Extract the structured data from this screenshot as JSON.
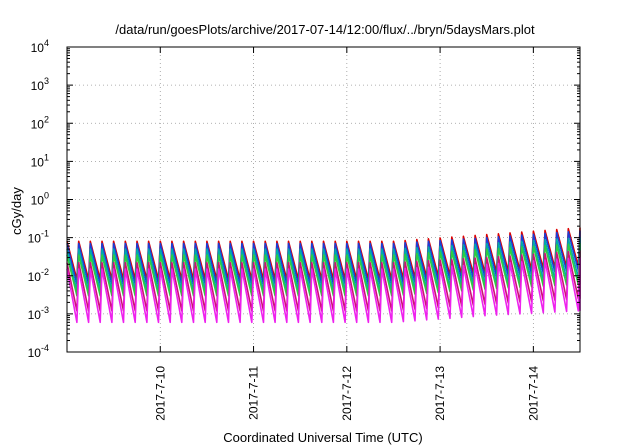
{
  "chart_data": {
    "type": "line",
    "title": "/data/run/goesPlots/archive/2017-07-14/12:00/flux/../bryn/5daysMars.plot",
    "xlabel": "Coordinated Universal Time (UTC)",
    "ylabel": "cGy/day",
    "yscale": "log",
    "ylim": [
      0.0001,
      10000
    ],
    "xlim": [
      "2017-07-09T00:00",
      "2017-07-14T12:00"
    ],
    "grid": true,
    "y_ticks": [
      {
        "base": "10",
        "exp": "-4"
      },
      {
        "base": "10",
        "exp": "-3"
      },
      {
        "base": "10",
        "exp": "-2"
      },
      {
        "base": "10",
        "exp": "-1"
      },
      {
        "base": "10",
        "exp": "0"
      },
      {
        "base": "10",
        "exp": "1"
      },
      {
        "base": "10",
        "exp": "2"
      },
      {
        "base": "10",
        "exp": "3"
      },
      {
        "base": "10",
        "exp": "4"
      }
    ],
    "x_ticks": [
      {
        "label": "2017-7-10",
        "x": "2017-07-10T00:00"
      },
      {
        "label": "2017-7-11",
        "x": "2017-07-11T00:00"
      },
      {
        "label": "2017-7-12",
        "x": "2017-07-12T00:00"
      },
      {
        "label": "2017-7-13",
        "x": "2017-07-13T00:00"
      },
      {
        "label": "2017-7-14",
        "x": "2017-07-14T00:00"
      }
    ],
    "oscillation_period_hours": 3,
    "series": [
      {
        "color": "#dd0000",
        "peak": [
          0.08,
          0.08,
          0.12,
          0.18
        ],
        "trough": [
          0.008,
          0.008,
          0.012,
          0.018
        ]
      },
      {
        "color": "#1a3fd8",
        "peak": [
          0.07,
          0.07,
          0.1,
          0.15
        ],
        "trough": [
          0.006,
          0.006,
          0.009,
          0.014
        ]
      },
      {
        "color": "#00aaaa",
        "peak": [
          0.05,
          0.05,
          0.07,
          0.1
        ],
        "trough": [
          0.004,
          0.004,
          0.006,
          0.009
        ]
      },
      {
        "color": "#2ecc40",
        "peak": [
          0.035,
          0.035,
          0.05,
          0.07
        ],
        "trough": [
          0.003,
          0.003,
          0.0045,
          0.006
        ]
      },
      {
        "color": "#cc1177",
        "peak": [
          0.022,
          0.022,
          0.03,
          0.045
        ],
        "trough": [
          0.0012,
          0.0012,
          0.0018,
          0.0025
        ]
      },
      {
        "color": "#ee22ee",
        "peak": [
          0.015,
          0.015,
          0.02,
          0.03
        ],
        "trough": [
          0.0006,
          0.0006,
          0.0009,
          0.0012
        ]
      }
    ],
    "series_keyframes_x": [
      "2017-07-09T00:00",
      "2017-07-12T12:00",
      "2017-07-13T12:00",
      "2017-07-14T12:00"
    ]
  }
}
